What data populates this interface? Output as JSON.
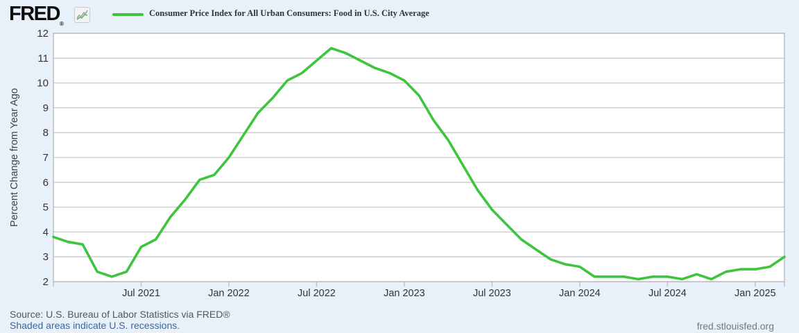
{
  "header": {
    "logo_text": "FRED",
    "logo_registered": "®",
    "legend_label": "Consumer Price Index for All Urban Consumers: Food in U.S. City Average"
  },
  "y_axis_title": "Percent Change from Year Ago",
  "footer": {
    "source_line": "Source: U.S. Bureau of Labor Statistics via FRED®",
    "recession_note": "Shaded areas indicate U.S. recessions.",
    "site_link": "fred.stlouisfed.org"
  },
  "colors": {
    "line_green": "#3ec53e",
    "page_bg": "#e8f1fa",
    "plot_bg": "#ffffff",
    "gridline": "#c9c9c9",
    "plot_border": "#b5b5b5",
    "tick_mark": "#b9c3ce",
    "tick_label": "#333333",
    "link_blue": "#3a67a3"
  },
  "chart_data": {
    "type": "line",
    "title": "Consumer Price Index for All Urban Consumers: Food in U.S. City Average",
    "ylabel": "Percent Change from Year Ago",
    "xlabel": "",
    "grid": true,
    "legend_position": "top-left",
    "ylim": [
      2,
      12
    ],
    "y_ticks": [
      2,
      3,
      4,
      5,
      6,
      7,
      8,
      9,
      10,
      11,
      12
    ],
    "x_tick_labels": [
      "Jul 2021",
      "Jan 2022",
      "Jul 2022",
      "Jan 2023",
      "Jul 2023",
      "Jan 2024",
      "Jul 2024",
      "Jan 2025"
    ],
    "x_tick_indices": [
      6,
      12,
      18,
      24,
      30,
      36,
      42,
      48
    ],
    "series": [
      {
        "name": "Consumer Price Index for All Urban Consumers: Food in U.S. City Average",
        "units": "Percent Change from Year Ago",
        "x": [
          "2021-01",
          "2021-02",
          "2021-03",
          "2021-04",
          "2021-05",
          "2021-06",
          "2021-07",
          "2021-08",
          "2021-09",
          "2021-10",
          "2021-11",
          "2021-12",
          "2022-01",
          "2022-02",
          "2022-03",
          "2022-04",
          "2022-05",
          "2022-06",
          "2022-07",
          "2022-08",
          "2022-09",
          "2022-10",
          "2022-11",
          "2022-12",
          "2023-01",
          "2023-02",
          "2023-03",
          "2023-04",
          "2023-05",
          "2023-06",
          "2023-07",
          "2023-08",
          "2023-09",
          "2023-10",
          "2023-11",
          "2023-12",
          "2024-01",
          "2024-02",
          "2024-03",
          "2024-04",
          "2024-05",
          "2024-06",
          "2024-07",
          "2024-08",
          "2024-09",
          "2024-10",
          "2024-11",
          "2024-12",
          "2025-01",
          "2025-02",
          "2025-03"
        ],
        "values": [
          3.8,
          3.6,
          3.5,
          2.4,
          2.2,
          2.4,
          3.4,
          3.7,
          4.6,
          5.3,
          6.1,
          6.3,
          7.0,
          7.9,
          8.8,
          9.4,
          10.1,
          10.4,
          10.9,
          11.4,
          11.2,
          10.9,
          10.6,
          10.4,
          10.1,
          9.5,
          8.5,
          7.7,
          6.7,
          5.7,
          4.9,
          4.3,
          3.7,
          3.3,
          2.9,
          2.7,
          2.6,
          2.2,
          2.2,
          2.2,
          2.1,
          2.2,
          2.2,
          2.1,
          2.3,
          2.1,
          2.4,
          2.5,
          2.5,
          2.6,
          3.0
        ]
      }
    ]
  }
}
